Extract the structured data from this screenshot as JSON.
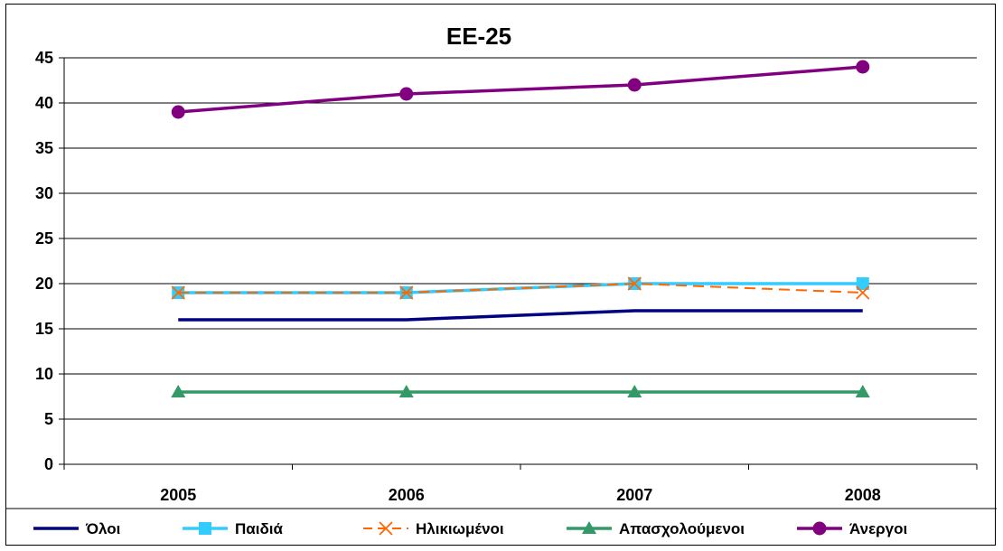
{
  "chart_data": {
    "type": "line",
    "title": "ΕΕ-25",
    "categories": [
      "2005",
      "2006",
      "2007",
      "2008"
    ],
    "ylim": [
      0,
      45
    ],
    "yticks": [
      0,
      5,
      10,
      15,
      20,
      25,
      30,
      35,
      40,
      45
    ],
    "grid": true,
    "legend_position": "bottom",
    "series": [
      {
        "name": "Όλοι",
        "values": [
          16,
          16,
          17,
          17
        ],
        "color": "#000080",
        "marker": "none",
        "dash": "solid"
      },
      {
        "name": "Παιδιά",
        "values": [
          19,
          19,
          20,
          20
        ],
        "color": "#33CCFF",
        "marker": "square",
        "dash": "solid"
      },
      {
        "name": "Ηλικιωμένοι",
        "values": [
          19,
          19,
          20,
          19
        ],
        "color": "#FF6600",
        "marker": "x",
        "dash": "dashed"
      },
      {
        "name": "Απασχολούμενοι",
        "values": [
          8,
          8,
          8,
          8
        ],
        "color": "#339966",
        "marker": "triangle",
        "dash": "solid"
      },
      {
        "name": "Άνεργοι",
        "values": [
          39,
          41,
          42,
          44
        ],
        "color": "#800080",
        "marker": "circle",
        "dash": "solid"
      }
    ]
  }
}
